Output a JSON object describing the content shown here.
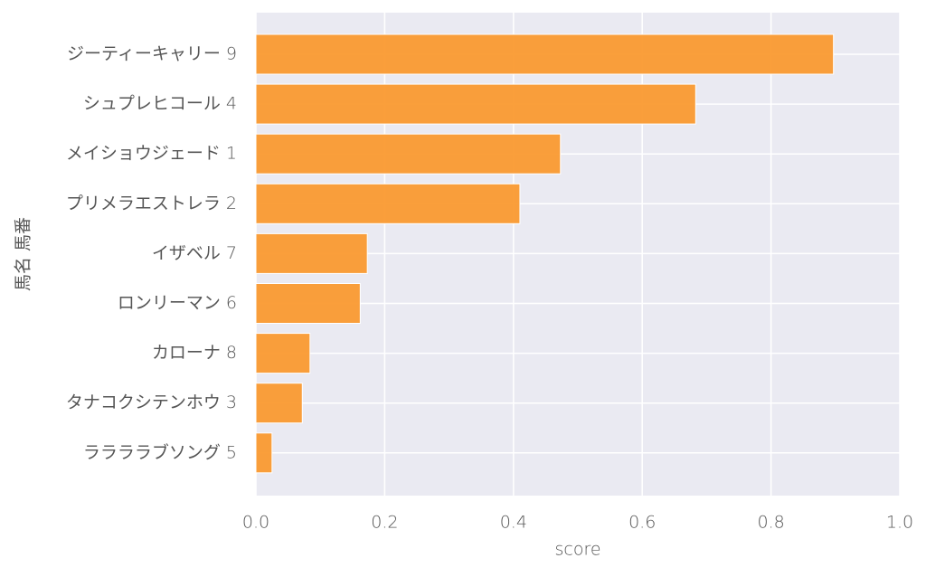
{
  "chart_data": {
    "type": "barh",
    "xlabel": "score",
    "ylabel": "馬名 馬番",
    "categories": [
      "ジーティーキャリー 9",
      "シュプレヒコール 4",
      "メイショウジェード 1",
      "プリメラエストレラ 2",
      "イザベル 7",
      "ロンリーマン 6",
      "カローナ 8",
      "タナコクシテンホウ 3",
      "ララララブソング 5"
    ],
    "values": [
      0.897,
      0.683,
      0.473,
      0.41,
      0.173,
      0.162,
      0.084,
      0.072,
      0.025
    ],
    "color": "#fa9a30",
    "xlim": [
      0,
      1
    ],
    "xticks": [
      {
        "value": 0,
        "label": "0.0"
      },
      0.2,
      0.4,
      0.6,
      0.8,
      {
        "value": 1,
        "label": "1.0"
      }
    ],
    "grid": true
  }
}
